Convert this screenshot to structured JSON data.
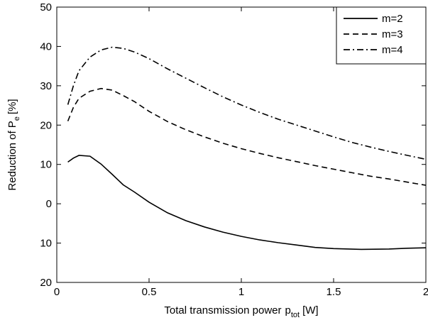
{
  "chart_data": {
    "type": "line",
    "xlabel": "Total transmission power",
    "xlabel_symbol": "p",
    "xlabel_sub": "tot",
    "xlabel_unit": "[W]",
    "ylabel": "Reduction of P",
    "ylabel_sub": "e",
    "ylabel_unit": "[%]",
    "xlim": [
      0,
      2
    ],
    "ylim": [
      -20,
      50
    ],
    "x_ticks": [
      {
        "value": 0,
        "label": "0"
      },
      {
        "value": 0.5,
        "label": "0.5"
      },
      {
        "value": 1,
        "label": "1"
      },
      {
        "value": 1.5,
        "label": "1.5"
      },
      {
        "value": 2,
        "label": "2"
      }
    ],
    "y_ticks": [
      {
        "value": -20,
        "label": "20"
      },
      {
        "value": -10,
        "label": "10"
      },
      {
        "value": 0,
        "label": "0"
      },
      {
        "value": 10,
        "label": "10"
      },
      {
        "value": 20,
        "label": "20"
      },
      {
        "value": 30,
        "label": "30"
      },
      {
        "value": 40,
        "label": "40"
      },
      {
        "value": 50,
        "label": "50"
      }
    ],
    "grid": false,
    "legend_position": "top-right",
    "series": [
      {
        "name": "m=2",
        "style": "solid",
        "points": [
          [
            0.06,
            10.6
          ],
          [
            0.09,
            11.6
          ],
          [
            0.12,
            12.3
          ],
          [
            0.18,
            12.1
          ],
          [
            0.24,
            10.1
          ],
          [
            0.3,
            7.5
          ],
          [
            0.36,
            4.8
          ],
          [
            0.42,
            3.0
          ],
          [
            0.5,
            0.4
          ],
          [
            0.6,
            -2.3
          ],
          [
            0.7,
            -4.3
          ],
          [
            0.8,
            -5.9
          ],
          [
            0.9,
            -7.2
          ],
          [
            1.0,
            -8.3
          ],
          [
            1.1,
            -9.2
          ],
          [
            1.2,
            -9.9
          ],
          [
            1.3,
            -10.5
          ],
          [
            1.4,
            -11.1
          ],
          [
            1.5,
            -11.4
          ],
          [
            1.65,
            -11.6
          ],
          [
            1.8,
            -11.5
          ],
          [
            1.9,
            -11.3
          ],
          [
            2.0,
            -11.2
          ]
        ]
      },
      {
        "name": "m=3",
        "style": "dashed",
        "points": [
          [
            0.06,
            21.0
          ],
          [
            0.09,
            24.5
          ],
          [
            0.12,
            26.8
          ],
          [
            0.18,
            28.6
          ],
          [
            0.24,
            29.3
          ],
          [
            0.3,
            28.9
          ],
          [
            0.36,
            27.5
          ],
          [
            0.42,
            26.0
          ],
          [
            0.5,
            23.5
          ],
          [
            0.6,
            20.9
          ],
          [
            0.7,
            18.8
          ],
          [
            0.8,
            17.0
          ],
          [
            0.9,
            15.4
          ],
          [
            1.0,
            14.0
          ],
          [
            1.1,
            12.8
          ],
          [
            1.2,
            11.7
          ],
          [
            1.3,
            10.7
          ],
          [
            1.4,
            9.7
          ],
          [
            1.5,
            8.8
          ],
          [
            1.6,
            7.9
          ],
          [
            1.7,
            7.0
          ],
          [
            1.8,
            6.3
          ],
          [
            1.9,
            5.5
          ],
          [
            2.0,
            4.7
          ]
        ]
      },
      {
        "name": "m=4",
        "style": "dashdot",
        "points": [
          [
            0.06,
            25.2
          ],
          [
            0.09,
            30.0
          ],
          [
            0.12,
            33.8
          ],
          [
            0.18,
            37.3
          ],
          [
            0.24,
            39.1
          ],
          [
            0.3,
            39.8
          ],
          [
            0.36,
            39.5
          ],
          [
            0.42,
            38.6
          ],
          [
            0.5,
            36.9
          ],
          [
            0.6,
            34.3
          ],
          [
            0.7,
            31.9
          ],
          [
            0.8,
            29.5
          ],
          [
            0.9,
            27.2
          ],
          [
            1.0,
            25.1
          ],
          [
            1.1,
            23.2
          ],
          [
            1.2,
            21.5
          ],
          [
            1.3,
            20.0
          ],
          [
            1.4,
            18.5
          ],
          [
            1.5,
            17.0
          ],
          [
            1.6,
            15.6
          ],
          [
            1.7,
            14.4
          ],
          [
            1.8,
            13.3
          ],
          [
            1.9,
            12.3
          ],
          [
            2.0,
            11.3
          ]
        ]
      }
    ]
  }
}
